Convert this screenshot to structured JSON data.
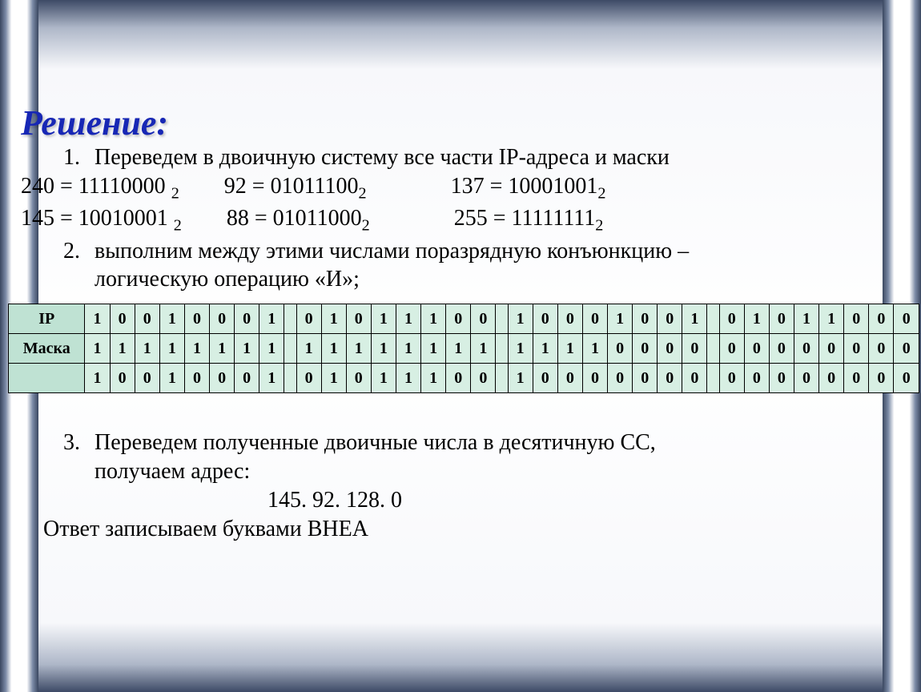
{
  "title": "Решение:",
  "step1": {
    "num": "1.",
    "text": "Переведем в двоичную систему все части IP-адреса и маски"
  },
  "conversions": {
    "a1_dec": "240",
    "a1_bin": "11110000",
    "a2_dec": "92",
    "a2_bin": "01011100",
    "a3_dec": "137",
    "a3_bin": "10001001",
    "b1_dec": "145",
    "b1_bin": "10010001",
    "b2_dec": "88",
    "b2_bin": "01011000",
    "b3_dec": "255",
    "b3_bin": "11111111"
  },
  "step2": {
    "num": "2.",
    "text_l1": "выполним между этими числами поразрядную конъюнкцию –",
    "text_l2": "логическую операцию «И»;"
  },
  "table": {
    "row_labels": [
      "IP",
      "Маска",
      ""
    ],
    "label_bg": "#bfe2d3",
    "cell_bg": "#d7efe3",
    "border_color": "#000000",
    "octets": {
      "ip": [
        [
          "1",
          "0",
          "0",
          "1",
          "0",
          "0",
          "0",
          "1"
        ],
        [
          "0",
          "1",
          "0",
          "1",
          "1",
          "1",
          "0",
          "0"
        ],
        [
          "1",
          "0",
          "0",
          "0",
          "1",
          "0",
          "0",
          "1"
        ],
        [
          "0",
          "1",
          "0",
          "1",
          "1",
          "0",
          "0",
          "0"
        ]
      ],
      "mask": [
        [
          "1",
          "1",
          "1",
          "1",
          "1",
          "1",
          "1",
          "1"
        ],
        [
          "1",
          "1",
          "1",
          "1",
          "1",
          "1",
          "1",
          "1"
        ],
        [
          "1",
          "1",
          "1",
          "1",
          "0",
          "0",
          "0",
          "0"
        ],
        [
          "0",
          "0",
          "0",
          "0",
          "0",
          "0",
          "0",
          "0"
        ]
      ],
      "result": [
        [
          "1",
          "0",
          "0",
          "1",
          "0",
          "0",
          "0",
          "1"
        ],
        [
          "0",
          "1",
          "0",
          "1",
          "1",
          "1",
          "0",
          "0"
        ],
        [
          "1",
          "0",
          "0",
          "0",
          "0",
          "0",
          "0",
          "0"
        ],
        [
          "0",
          "0",
          "0",
          "0",
          "0",
          "0",
          "0",
          "0"
        ]
      ]
    }
  },
  "step3": {
    "num": "3.",
    "text_l1": "Переведем полученные двоичные числа в десятичную СС,",
    "text_l2": "получаем адрес:"
  },
  "result_address": "145. 92. 128. 0",
  "answer_line": "Ответ записываем буквами ВНЕА",
  "colors": {
    "title_color": "#1727b5",
    "edge_dark": "#3a4760",
    "edge_light": "#ffffff"
  }
}
